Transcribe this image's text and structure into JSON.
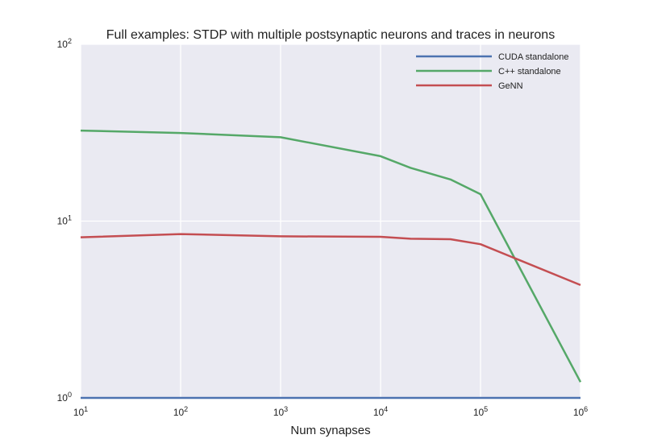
{
  "chart_data": {
    "type": "line",
    "title": "Full examples: STDP with multiple postsynaptic neurons and traces in neurons",
    "xlabel": "Num synapses",
    "ylabel": "",
    "x_scale": "log",
    "y_scale": "log",
    "xlim": [
      10,
      1000000
    ],
    "ylim": [
      1,
      100
    ],
    "x_ticks": [
      {
        "base": "10",
        "exp": "1",
        "value": 10
      },
      {
        "base": "10",
        "exp": "2",
        "value": 100
      },
      {
        "base": "10",
        "exp": "3",
        "value": 1000
      },
      {
        "base": "10",
        "exp": "4",
        "value": 10000
      },
      {
        "base": "10",
        "exp": "5",
        "value": 100000
      },
      {
        "base": "10",
        "exp": "6",
        "value": 1000000
      }
    ],
    "y_ticks": [
      {
        "base": "10",
        "exp": "0",
        "value": 1
      },
      {
        "base": "10",
        "exp": "1",
        "value": 10
      },
      {
        "base": "10",
        "exp": "2",
        "value": 100
      }
    ],
    "grid": true,
    "background": "#eaeaf2",
    "legend_position": "top-right",
    "series": [
      {
        "name": "CUDA standalone",
        "color": "#4c72b0",
        "x": [
          10,
          100,
          1000,
          10000,
          20000,
          50000,
          100000,
          1000000
        ],
        "y": [
          1,
          1,
          1,
          1,
          1,
          1,
          1,
          1
        ]
      },
      {
        "name": "C++ standalone",
        "color": "#55a868",
        "x": [
          10,
          100,
          1000,
          10000,
          20000,
          50000,
          100000,
          1000000
        ],
        "y": [
          32.5,
          31.5,
          29.8,
          23.3,
          20.0,
          17.2,
          14.2,
          1.23
        ]
      },
      {
        "name": "GeNN",
        "color": "#c44e52",
        "x": [
          10,
          100,
          1000,
          10000,
          20000,
          50000,
          100000,
          1000000
        ],
        "y": [
          8.1,
          8.45,
          8.2,
          8.15,
          7.95,
          7.9,
          7.4,
          4.35
        ]
      }
    ]
  }
}
